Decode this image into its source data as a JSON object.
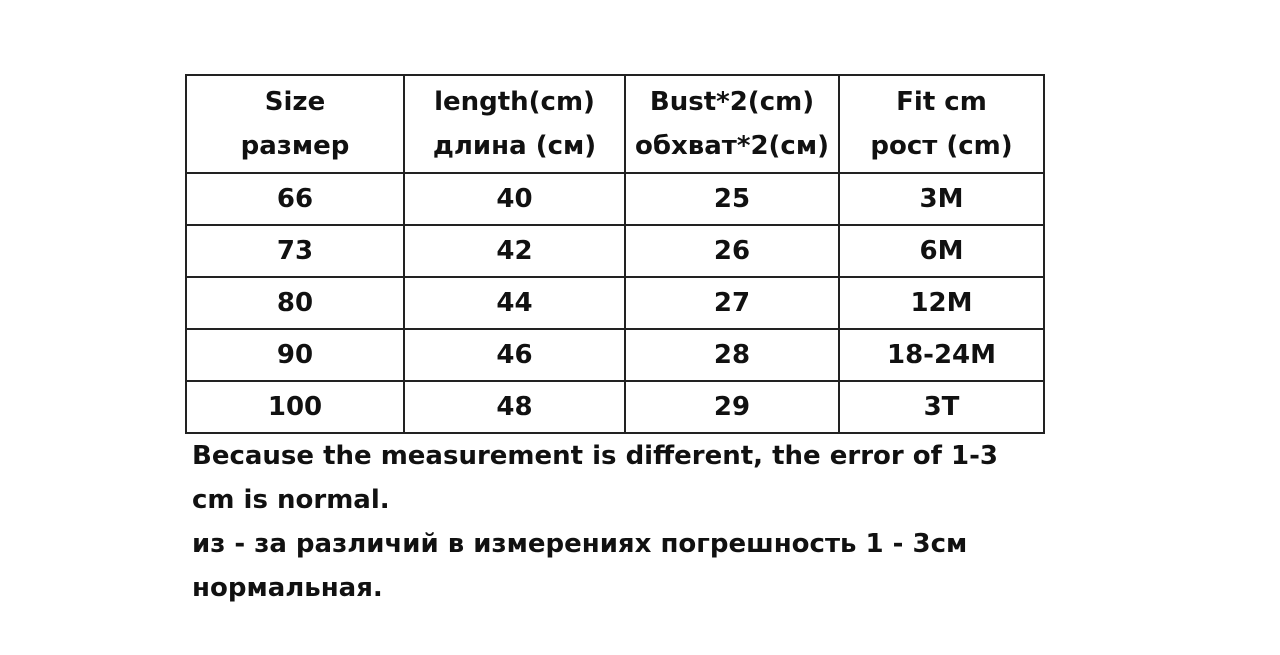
{
  "table": {
    "headers": [
      [
        "Size",
        "размер"
      ],
      [
        "length(cm)",
        "длина (см)"
      ],
      [
        "Bust*2(cm)",
        "обхват*2(см)"
      ],
      [
        "Fit cm",
        "рост (cm)"
      ]
    ],
    "rows": [
      [
        "66",
        "40",
        "25",
        "3M"
      ],
      [
        "73",
        "42",
        "26",
        "6M"
      ],
      [
        "80",
        "44",
        "27",
        "12M"
      ],
      [
        "90",
        "46",
        "28",
        "18-24M"
      ],
      [
        "100",
        "48",
        "29",
        "3T"
      ]
    ]
  },
  "notes": [
    "Because the measurement is different, the error of 1-3",
    "cm is normal.",
    "из - за различий в измерениях погрешность 1 - 3см",
    "нормальная."
  ]
}
